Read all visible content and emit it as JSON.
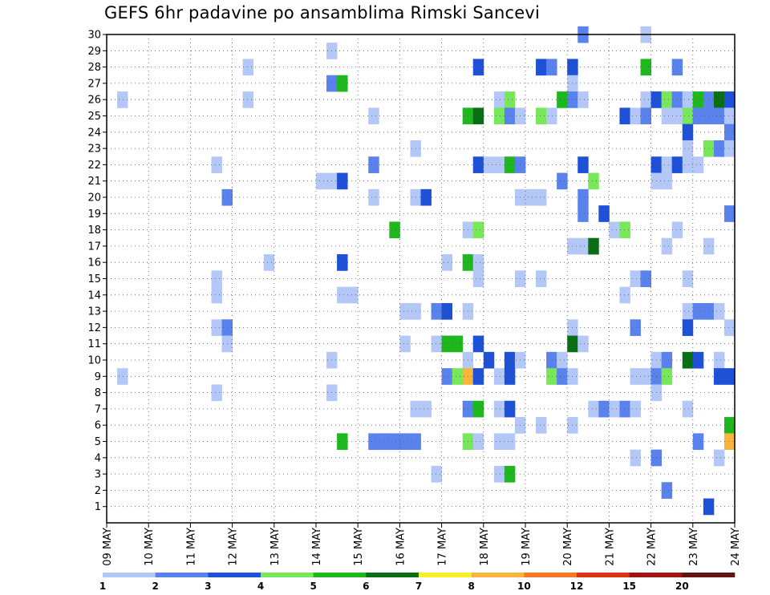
{
  "chart_data": {
    "type": "heatmap",
    "title": "GEFS 6hr padavine po ansamblima Rimski Sancevi",
    "y_labels": [
      "1",
      "2",
      "3",
      "4",
      "5",
      "6",
      "7",
      "8",
      "9",
      "10",
      "11",
      "12",
      "13",
      "14",
      "15",
      "16",
      "17",
      "18",
      "19",
      "20",
      "21",
      "22",
      "23",
      "24",
      "25",
      "26",
      "27",
      "28",
      "29",
      "30"
    ],
    "x_labels": [
      "09 MAY",
      "10 MAY",
      "11 MAY",
      "12 MAY",
      "13 MAY",
      "14 MAY",
      "15 MAY",
      "16 MAY",
      "17 MAY",
      "18 MAY",
      "19 MAY",
      "20 MAY",
      "21 MAY",
      "22 MAY",
      "23 MAY",
      "24 MAY"
    ],
    "x_steps_per_day": 4,
    "x_steps_total": 60,
    "grid": true,
    "legend": {
      "position": "bottom",
      "labels": [
        "1",
        "2",
        "3",
        "4",
        "5",
        "6",
        "7",
        "8",
        "10",
        "12",
        "15",
        "20"
      ],
      "colors": [
        "#b4c8f8",
        "#5a82ec",
        "#1e50d8",
        "#78e85a",
        "#1eb81e",
        "#0a6e14",
        "#f8f028",
        "#f8b43c",
        "#f87828",
        "#dc3214",
        "#a01414",
        "#641414"
      ]
    },
    "levels": [
      {
        "value": 1,
        "color": "#b4c8f8"
      },
      {
        "value": 2,
        "color": "#5a82ec"
      },
      {
        "value": 3,
        "color": "#1e50d8"
      },
      {
        "value": 4,
        "color": "#78e85a"
      },
      {
        "value": 5,
        "color": "#1eb81e"
      },
      {
        "value": 6,
        "color": "#0a6e14"
      },
      {
        "value": 7,
        "color": "#f8f028"
      },
      {
        "value": 8,
        "color": "#f8b43c"
      }
    ],
    "points": [
      [
        30,
        45,
        2
      ],
      [
        30,
        51,
        1
      ],
      [
        29,
        21,
        1
      ],
      [
        28,
        13,
        1
      ],
      [
        28,
        35,
        3
      ],
      [
        28,
        41,
        3
      ],
      [
        28,
        42,
        2
      ],
      [
        28,
        44,
        3
      ],
      [
        28,
        51,
        5
      ],
      [
        28,
        54,
        2
      ],
      [
        27,
        21,
        2
      ],
      [
        27,
        22,
        5
      ],
      [
        27,
        44,
        1
      ],
      [
        26,
        1,
        1
      ],
      [
        26,
        13,
        1
      ],
      [
        26,
        37,
        1
      ],
      [
        26,
        38,
        4
      ],
      [
        26,
        43,
        5
      ],
      [
        26,
        44,
        2
      ],
      [
        26,
        45,
        1
      ],
      [
        26,
        51,
        1
      ],
      [
        26,
        52,
        3
      ],
      [
        26,
        53,
        4
      ],
      [
        26,
        54,
        2
      ],
      [
        26,
        55,
        1
      ],
      [
        26,
        56,
        5
      ],
      [
        26,
        57,
        2
      ],
      [
        26,
        58,
        6
      ],
      [
        26,
        59,
        3
      ],
      [
        25,
        25,
        1
      ],
      [
        25,
        34,
        5
      ],
      [
        25,
        35,
        6
      ],
      [
        25,
        37,
        4
      ],
      [
        25,
        38,
        2
      ],
      [
        25,
        39,
        1
      ],
      [
        25,
        41,
        4
      ],
      [
        25,
        42,
        1
      ],
      [
        25,
        49,
        3
      ],
      [
        25,
        50,
        1
      ],
      [
        25,
        51,
        2
      ],
      [
        25,
        53,
        1
      ],
      [
        25,
        54,
        1
      ],
      [
        25,
        55,
        4
      ],
      [
        25,
        56,
        2
      ],
      [
        25,
        57,
        2
      ],
      [
        25,
        58,
        2
      ],
      [
        25,
        59,
        1
      ],
      [
        24,
        55,
        3
      ],
      [
        24,
        59,
        2
      ],
      [
        23,
        29,
        1
      ],
      [
        23,
        55,
        1
      ],
      [
        23,
        57,
        4
      ],
      [
        23,
        58,
        2
      ],
      [
        23,
        59,
        1
      ],
      [
        22,
        10,
        1
      ],
      [
        22,
        25,
        2
      ],
      [
        22,
        35,
        3
      ],
      [
        22,
        36,
        1
      ],
      [
        22,
        37,
        1
      ],
      [
        22,
        38,
        5
      ],
      [
        22,
        39,
        2
      ],
      [
        22,
        45,
        3
      ],
      [
        22,
        52,
        3
      ],
      [
        22,
        53,
        1
      ],
      [
        22,
        54,
        3
      ],
      [
        22,
        55,
        1
      ],
      [
        22,
        56,
        1
      ],
      [
        21,
        20,
        1
      ],
      [
        21,
        21,
        1
      ],
      [
        21,
        22,
        3
      ],
      [
        21,
        43,
        2
      ],
      [
        21,
        46,
        4
      ],
      [
        21,
        52,
        1
      ],
      [
        21,
        53,
        1
      ],
      [
        20,
        11,
        2
      ],
      [
        20,
        25,
        1
      ],
      [
        20,
        29,
        1
      ],
      [
        20,
        30,
        3
      ],
      [
        20,
        39,
        1
      ],
      [
        20,
        40,
        1
      ],
      [
        20,
        41,
        1
      ],
      [
        20,
        45,
        2
      ],
      [
        19,
        45,
        2
      ],
      [
        19,
        47,
        3
      ],
      [
        19,
        59,
        2
      ],
      [
        18,
        27,
        5
      ],
      [
        18,
        34,
        1
      ],
      [
        18,
        35,
        4
      ],
      [
        18,
        48,
        1
      ],
      [
        18,
        49,
        4
      ],
      [
        18,
        54,
        1
      ],
      [
        17,
        44,
        1
      ],
      [
        17,
        45,
        1
      ],
      [
        17,
        46,
        6
      ],
      [
        17,
        53,
        1
      ],
      [
        17,
        57,
        1
      ],
      [
        16,
        15,
        1
      ],
      [
        16,
        22,
        3
      ],
      [
        16,
        32,
        1
      ],
      [
        16,
        34,
        5
      ],
      [
        16,
        35,
        1
      ],
      [
        15,
        10,
        1
      ],
      [
        15,
        35,
        1
      ],
      [
        15,
        39,
        1
      ],
      [
        15,
        41,
        1
      ],
      [
        15,
        50,
        1
      ],
      [
        15,
        51,
        2
      ],
      [
        15,
        55,
        1
      ],
      [
        14,
        10,
        1
      ],
      [
        14,
        22,
        1
      ],
      [
        14,
        23,
        1
      ],
      [
        14,
        49,
        1
      ],
      [
        13,
        28,
        1
      ],
      [
        13,
        29,
        1
      ],
      [
        13,
        31,
        2
      ],
      [
        13,
        32,
        3
      ],
      [
        13,
        34,
        1
      ],
      [
        13,
        55,
        1
      ],
      [
        13,
        56,
        2
      ],
      [
        13,
        57,
        2
      ],
      [
        13,
        58,
        1
      ],
      [
        12,
        10,
        1
      ],
      [
        12,
        11,
        2
      ],
      [
        12,
        44,
        1
      ],
      [
        12,
        50,
        2
      ],
      [
        12,
        55,
        3
      ],
      [
        12,
        59,
        1
      ],
      [
        11,
        11,
        1
      ],
      [
        11,
        28,
        1
      ],
      [
        11,
        31,
        1
      ],
      [
        11,
        32,
        5
      ],
      [
        11,
        33,
        5
      ],
      [
        11,
        35,
        3
      ],
      [
        11,
        44,
        6
      ],
      [
        11,
        45,
        1
      ],
      [
        10,
        21,
        1
      ],
      [
        10,
        34,
        1
      ],
      [
        10,
        36,
        3
      ],
      [
        10,
        38,
        3
      ],
      [
        10,
        39,
        1
      ],
      [
        10,
        42,
        2
      ],
      [
        10,
        43,
        1
      ],
      [
        10,
        52,
        1
      ],
      [
        10,
        53,
        2
      ],
      [
        10,
        55,
        6
      ],
      [
        10,
        56,
        3
      ],
      [
        10,
        58,
        1
      ],
      [
        9,
        1,
        1
      ],
      [
        9,
        32,
        2
      ],
      [
        9,
        33,
        4
      ],
      [
        9,
        34,
        8
      ],
      [
        9,
        35,
        3
      ],
      [
        9,
        37,
        1
      ],
      [
        9,
        38,
        3
      ],
      [
        9,
        42,
        4
      ],
      [
        9,
        43,
        2
      ],
      [
        9,
        44,
        1
      ],
      [
        9,
        50,
        1
      ],
      [
        9,
        51,
        1
      ],
      [
        9,
        52,
        2
      ],
      [
        9,
        53,
        4
      ],
      [
        9,
        58,
        3
      ],
      [
        9,
        59,
        3
      ],
      [
        8,
        10,
        1
      ],
      [
        8,
        21,
        1
      ],
      [
        8,
        52,
        1
      ],
      [
        7,
        29,
        1
      ],
      [
        7,
        30,
        1
      ],
      [
        7,
        34,
        2
      ],
      [
        7,
        35,
        5
      ],
      [
        7,
        37,
        1
      ],
      [
        7,
        38,
        3
      ],
      [
        7,
        46,
        1
      ],
      [
        7,
        47,
        2
      ],
      [
        7,
        48,
        1
      ],
      [
        7,
        49,
        2
      ],
      [
        7,
        50,
        1
      ],
      [
        7,
        55,
        1
      ],
      [
        6,
        39,
        1
      ],
      [
        6,
        41,
        1
      ],
      [
        6,
        44,
        1
      ],
      [
        6,
        59,
        5
      ],
      [
        5,
        22,
        5
      ],
      [
        5,
        25,
        2
      ],
      [
        5,
        26,
        2
      ],
      [
        5,
        27,
        2
      ],
      [
        5,
        28,
        2
      ],
      [
        5,
        29,
        2
      ],
      [
        5,
        34,
        4
      ],
      [
        5,
        35,
        1
      ],
      [
        5,
        37,
        1
      ],
      [
        5,
        38,
        1
      ],
      [
        5,
        56,
        2
      ],
      [
        5,
        59,
        8
      ],
      [
        4,
        50,
        1
      ],
      [
        4,
        52,
        2
      ],
      [
        4,
        58,
        1
      ],
      [
        3,
        31,
        1
      ],
      [
        3,
        37,
        1
      ],
      [
        3,
        38,
        5
      ],
      [
        2,
        53,
        2
      ],
      [
        1,
        57,
        3
      ]
    ]
  }
}
